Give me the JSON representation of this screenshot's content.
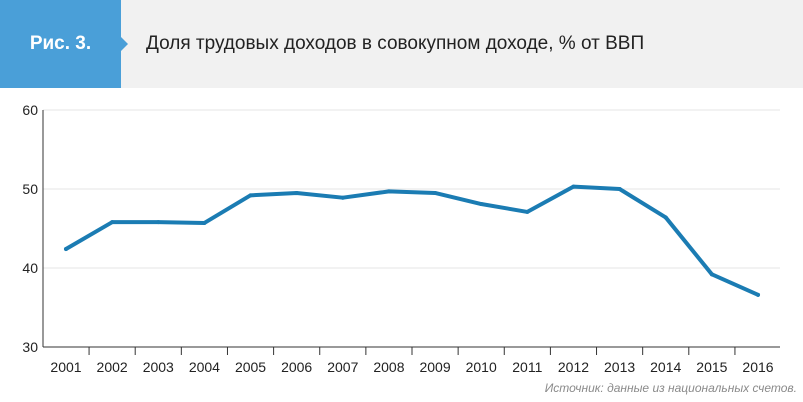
{
  "figure": {
    "label": "Рис. 3.",
    "title": "Доля трудовых доходов в совокупном доходе, % от ВВП",
    "source": "Источник: данные из национальных счетов."
  },
  "colors": {
    "badge": "#4a9fd8",
    "header_bg": "#f1f1f1",
    "line": "#1b7cb3",
    "grid": "#e6e6e6"
  },
  "chart_data": {
    "type": "line",
    "title": "Доля трудовых доходов в совокупном доходе, % от ВВП",
    "xlabel": "",
    "ylabel": "",
    "categories": [
      "2001",
      "2002",
      "2003",
      "2004",
      "2005",
      "2006",
      "2007",
      "2008",
      "2009",
      "2010",
      "2011",
      "2012",
      "2013",
      "2014",
      "2015",
      "2016"
    ],
    "series": [
      {
        "values": [
          42.4,
          45.8,
          45.8,
          45.7,
          49.2,
          49.5,
          48.9,
          49.7,
          49.5,
          48.1,
          47.1,
          50.3,
          50.0,
          46.4,
          39.2,
          36.6
        ]
      }
    ],
    "ylim": [
      30,
      60
    ],
    "yticks": [
      30,
      40,
      50,
      60
    ],
    "grid": true,
    "legend": "none"
  }
}
